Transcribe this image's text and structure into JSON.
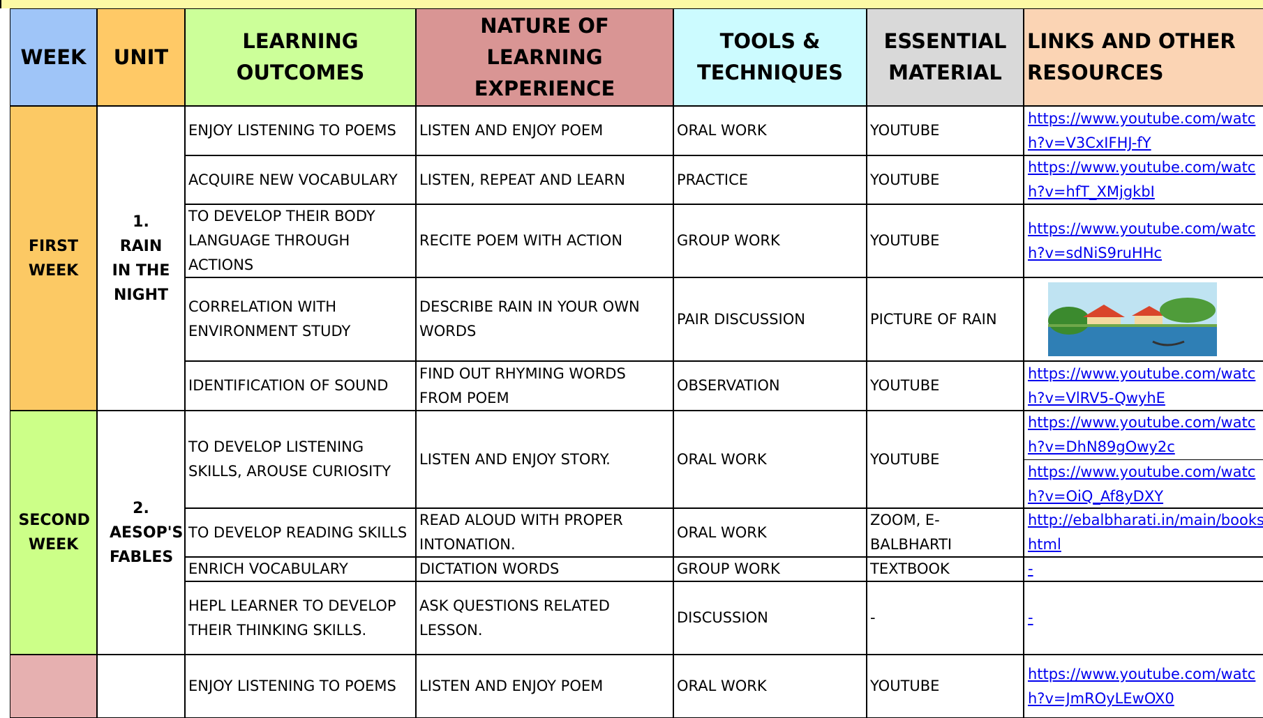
{
  "header": {
    "columns": [
      "WEEK",
      "UNIT",
      "LEARNING OUTCOMES",
      "NATURE OF LEARNING EXPERIENCE",
      "TOOLS & TECHNIQUES",
      "ESSENTIAL MATERIAL",
      "LINKS AND OTHER RESOURCES"
    ]
  },
  "weeks": [
    {
      "week": "FIRST WEEK",
      "unit": "1. RAIN IN THE NIGHT"
    },
    {
      "week": "SECOND WEEK",
      "unit": "2. AESOP'S FABLES"
    }
  ],
  "rows": [
    {
      "outcome": "ENJOY LISTENING TO POEMS",
      "experience": "LISTEN AND ENJOY POEM",
      "tools": "ORAL WORK",
      "material": "YOUTUBE",
      "links": [
        "https://www.youtube.com/watch?v=V3CxIFHJ-fY"
      ]
    },
    {
      "outcome": "ACQUIRE NEW VOCABULARY",
      "experience": "LISTEN, REPEAT AND LEARN",
      "tools": "PRACTICE",
      "material": "YOUTUBE",
      "links": [
        "https://www.youtube.com/watch?v=hfT_XMjgkbI"
      ]
    },
    {
      "outcome": "TO DEVELOP THEIR BODY LANGUAGE THROUGH ACTIONS",
      "experience": "RECITE POEM WITH ACTION",
      "tools": "GROUP WORK",
      "material": "YOUTUBE",
      "links": [
        "https://www.youtube.com/watch?v=sdNiS9ruHHc"
      ]
    },
    {
      "outcome": "CORRELATION WITH ENVIRONMENT STUDY",
      "experience": "DESCRIBE RAIN IN YOUR OWN WORDS",
      "tools": "PAIR DISCUSSION",
      "material": "PICTURE OF RAIN",
      "links": []
    },
    {
      "outcome": "IDENTIFICATION OF SOUND",
      "experience": "FIND OUT RHYMING WORDS FROM POEM",
      "tools": "OBSERVATION",
      "material": "YOUTUBE",
      "links": [
        "https://www.youtube.com/watch?v=VlRV5-QwyhE"
      ]
    },
    {
      "outcome": "TO DEVELOP LISTENING SKILLS, AROUSE CURIOSITY",
      "experience": "LISTEN AND ENJOY STORY.",
      "tools": "ORAL WORK",
      "material": "YOUTUBE",
      "links": [
        "https://www.youtube.com/watch?v=DhN89gOwy2c",
        "https://www.youtube.com/watch?v=OiQ_Af8yDXY"
      ]
    },
    {
      "outcome": "TO DEVELOP READING SKILLS",
      "experience": "READ ALOUD WITH PROPER INTONATION.",
      "tools": "ORAL WORK",
      "material": "ZOOM, E-BALBHARTI",
      "links": [
        "http://ebalbharati.in/main/books.html"
      ]
    },
    {
      "outcome": "ENRICH VOCABULARY",
      "experience": "DICTATION WORDS",
      "tools": "GROUP WORK",
      "material": "TEXTBOOK",
      "links": [
        "-"
      ]
    },
    {
      "outcome": "HEPL LEARNER TO DEVELOP THEIR THINKING SKILLS.",
      "experience": "ASK QUESTIONS RELATED LESSON.",
      "tools": "DISCUSSION",
      "material": "-",
      "links": [
        "-"
      ]
    },
    {
      "outcome": "ENJOY LISTENING TO POEMS",
      "experience": "LISTEN AND ENJOY POEM",
      "tools": "ORAL WORK",
      "material": "YOUTUBE",
      "links": [
        "https://www.youtube.com/watch?v=JmROyLEwOX0"
      ]
    }
  ]
}
